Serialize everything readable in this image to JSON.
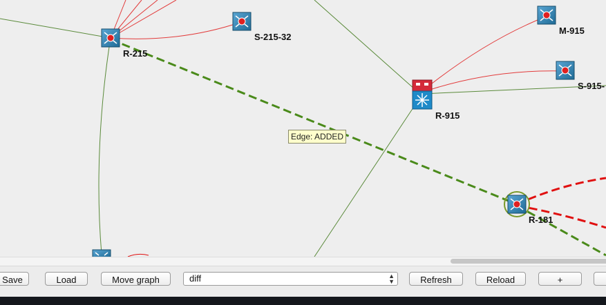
{
  "graph": {
    "nodes": {
      "r215": "R-215",
      "s215_32": "S-215-32",
      "r915": "R-915",
      "m915": "M-915",
      "s915": "S-915-",
      "r181": "R-181"
    },
    "tooltip": "Edge: ADDED",
    "colors": {
      "link": "#5a8a3a",
      "added_edge": "#4a8a1a",
      "access_link": "#e23a3a",
      "diff_edge": "#e01010",
      "switch_blue": "#2e7fae",
      "core_red": "#d42a3a"
    }
  },
  "toolbar": {
    "save": "Save",
    "load": "Load",
    "move_graph": "Move graph",
    "mode_select": "diff",
    "refresh": "Refresh",
    "reload": "Reload",
    "plus": "+"
  }
}
